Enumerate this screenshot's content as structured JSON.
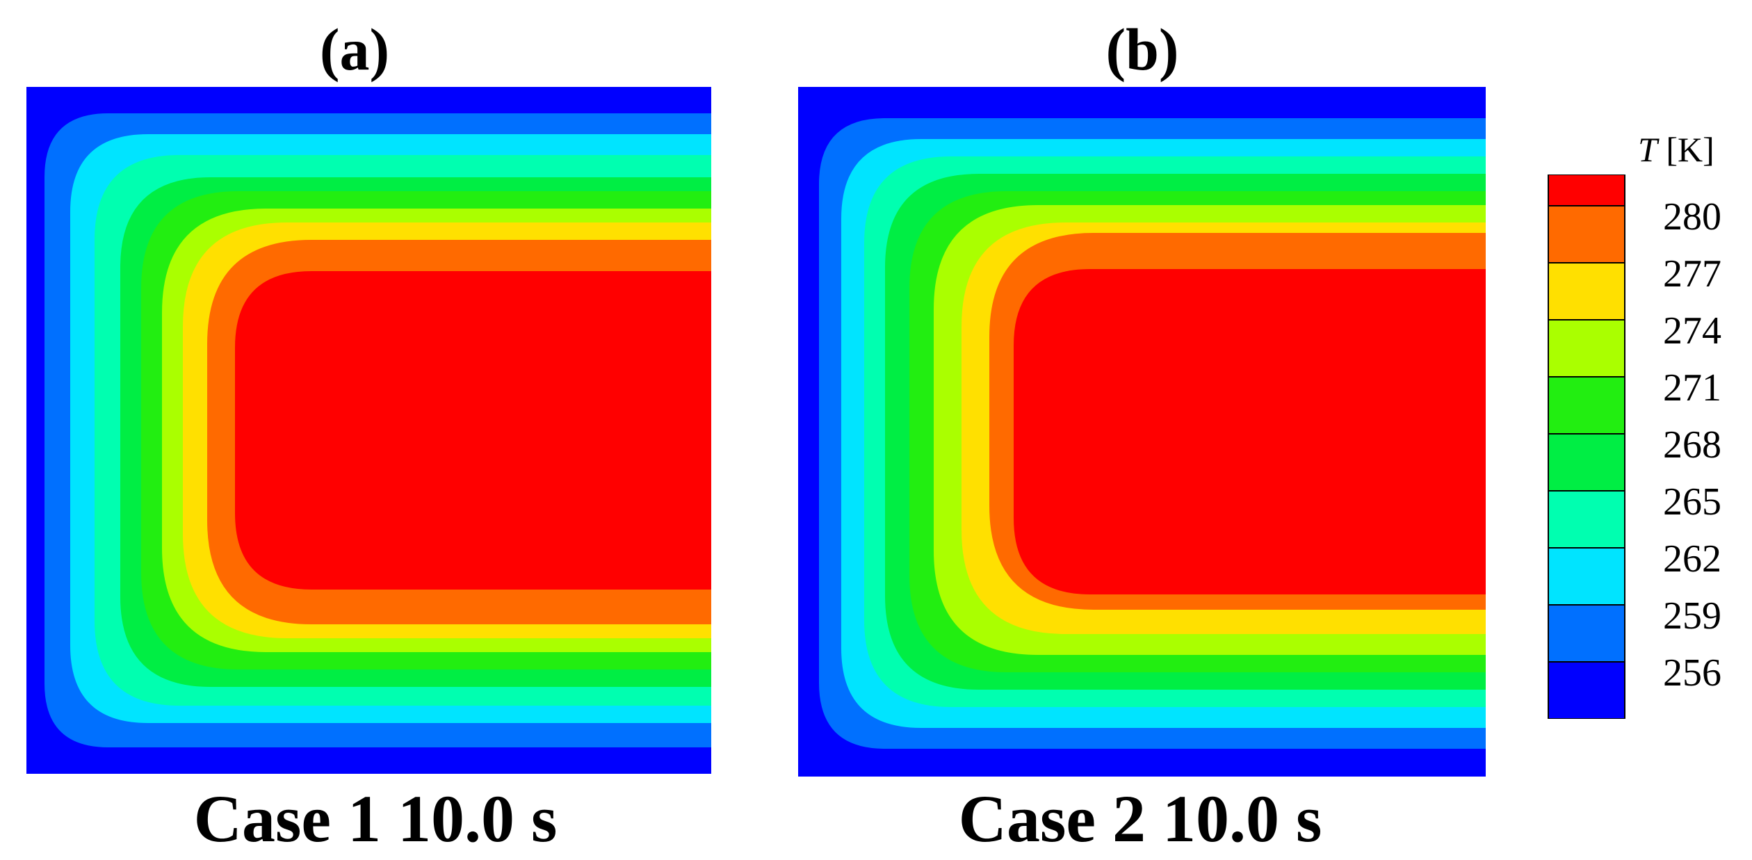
{
  "chart_data": [
    {
      "type": "heatmap",
      "panel_label": "(a)",
      "caption": "Case 1 10.0 s",
      "variable": "T",
      "unit": "[K]"
    },
    {
      "type": "heatmap",
      "panel_label": "(b)",
      "caption": "Case 2 10.0 s",
      "variable": "T",
      "unit": "[K]"
    }
  ],
  "colorbar": {
    "title_symbol": "T",
    "title_unit": "[K]",
    "ticks": [
      "280",
      "277",
      "274",
      "271",
      "268",
      "265",
      "262",
      "259",
      "256"
    ],
    "levels": [
      {
        "color": "#ff0000"
      },
      {
        "color": "#ff6a00"
      },
      {
        "color": "#ffe000"
      },
      {
        "color": "#aaff00"
      },
      {
        "color": "#22ee11"
      },
      {
        "color": "#00ee44"
      },
      {
        "color": "#00ffb0"
      },
      {
        "color": "#00e4ff"
      },
      {
        "color": "#0070ff"
      },
      {
        "color": "#0000ff"
      }
    ]
  }
}
